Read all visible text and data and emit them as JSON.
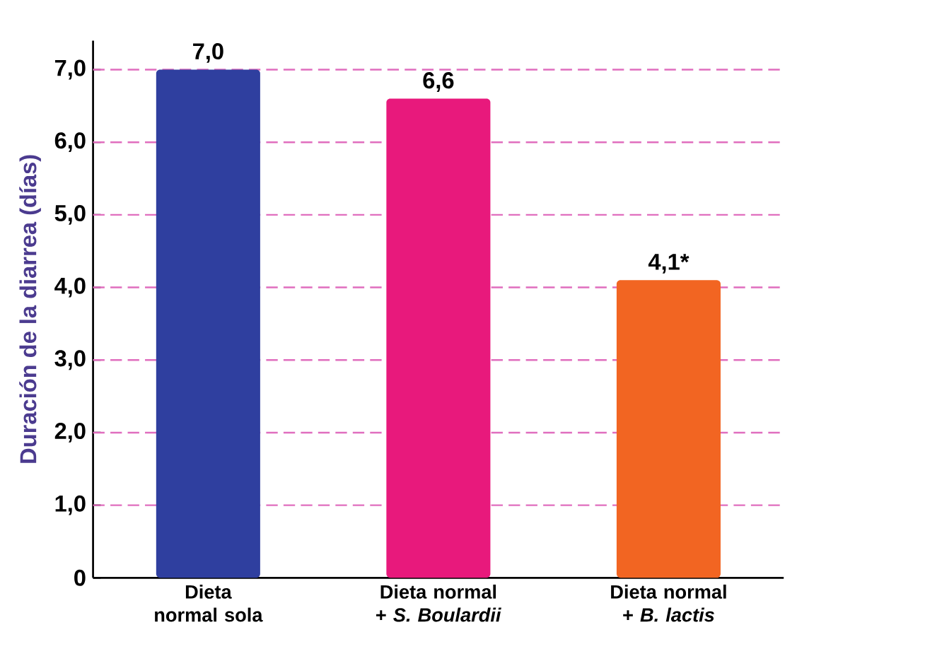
{
  "chart_data": {
    "type": "bar",
    "ylabel": "Duración de la diarrea (días)",
    "categories": [
      "Dieta normal sola",
      "Dieta normal + *S. Boulardii*",
      "Dieta normal + *B. lactis*"
    ],
    "values": [
      7.0,
      6.6,
      4.1
    ],
    "value_labels": [
      "7,0",
      "6,6",
      "4,1*"
    ],
    "colors": [
      "#2f3f9f",
      "#e8197c",
      "#f26522"
    ],
    "ylim": [
      0,
      7.4
    ],
    "yticks": [
      0,
      {
        "value": 1,
        "label": "1,0"
      },
      {
        "value": 2,
        "label": "2,0"
      },
      {
        "value": 3,
        "label": "3,0"
      },
      {
        "value": 4,
        "label": "4,0"
      },
      {
        "value": 5,
        "label": "5,0"
      },
      {
        "value": 6,
        "label": "6,0"
      },
      {
        "value": 7,
        "label": "7,0"
      }
    ],
    "grid": "y"
  }
}
